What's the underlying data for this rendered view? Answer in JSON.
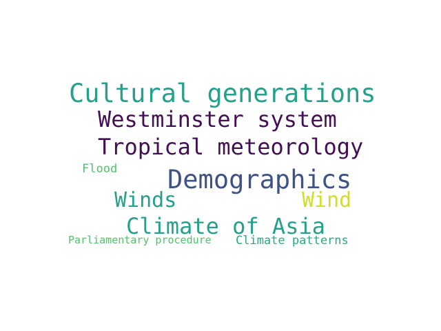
{
  "words": [
    {
      "text": "Cultural generations",
      "color": "#26a08a"
    },
    {
      "text": "Westminster system",
      "color": "#440f55"
    },
    {
      "text": "Tropical meteorology",
      "color": "#440f55"
    },
    {
      "text": "Flood",
      "color": "#4fc36a"
    },
    {
      "text": "Demographics",
      "color": "#3f5287"
    },
    {
      "text": "Winds",
      "color": "#26a08a"
    },
    {
      "text": "Wind",
      "color": "#d1de2b"
    },
    {
      "text": "Climate of Asia",
      "color": "#26a08a"
    },
    {
      "text": "Parliamentary procedure",
      "color": "#4fc36a"
    },
    {
      "text": "Climate patterns",
      "color": "#2aaa7f"
    }
  ]
}
